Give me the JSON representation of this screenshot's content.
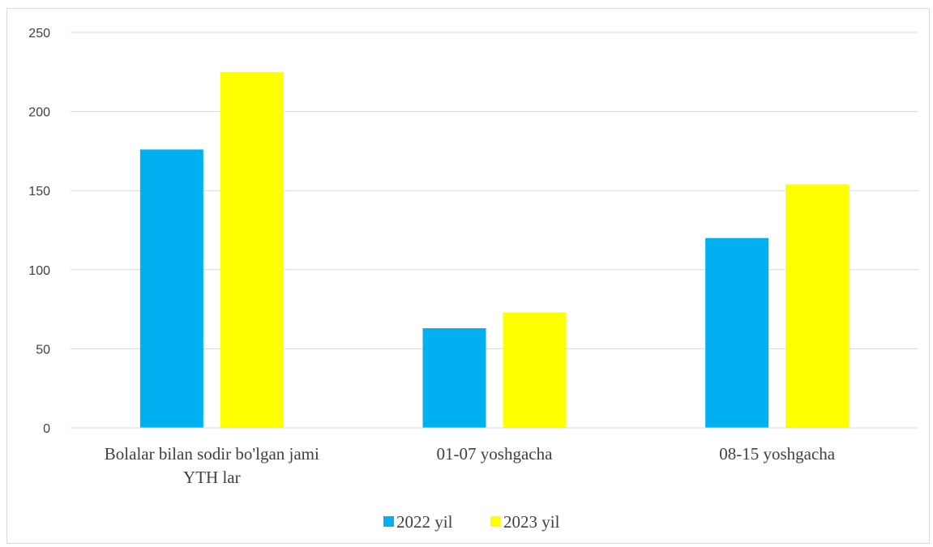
{
  "chart_data": {
    "type": "bar",
    "categories": [
      [
        "Bolalar bilan sodir bo'lgan jami",
        "YTH lar"
      ],
      [
        "01-07 yoshgacha"
      ],
      [
        "08-15 yoshgacha"
      ]
    ],
    "series": [
      {
        "name": "2022 yil",
        "color": "#00b0f0",
        "values": [
          176,
          63,
          120
        ]
      },
      {
        "name": "2023 yil",
        "color": "#ffff00",
        "values": [
          225,
          73,
          154
        ]
      }
    ],
    "ylim": [
      0,
      250
    ],
    "yticks": [
      "0",
      "50",
      "100",
      "150",
      "200",
      "250"
    ],
    "title": "",
    "xlabel": "",
    "ylabel": "",
    "grid": true,
    "legend_position": "bottom",
    "colors": {
      "grid": "#d9d9d9",
      "axis": "#d9d9d9",
      "text": "#404040"
    }
  }
}
